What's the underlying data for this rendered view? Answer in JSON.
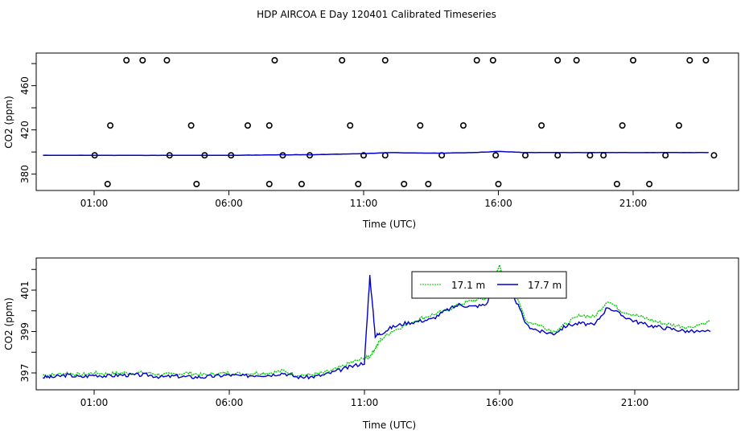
{
  "title": "HDP AIRCOA E  Day 120401  Calibrated Timeseries",
  "colors": {
    "green": "#00cc00",
    "blue": "#0000cc",
    "black": "#000000"
  },
  "chart_data": [
    {
      "type": "scatter",
      "xlabel": "Time (UTC)",
      "ylabel": "CO2 (ppm)",
      "xlim": [
        0,
        24.3
      ],
      "ylim": [
        364,
        486
      ],
      "x_ticks": [
        1,
        6,
        11,
        16,
        21
      ],
      "x_tick_labels": [
        "01:00",
        "06:00",
        "11:00",
        "16:00",
        "21:00"
      ],
      "y_ticks": [
        380,
        420,
        460
      ],
      "y_tick_labels": [
        "380",
        "420",
        "460"
      ],
      "grid": false,
      "reference_points": {
        "x": [
          1.02,
          3.8,
          5.1,
          6.08,
          8.0,
          9.0,
          11.0,
          11.8,
          13.9,
          15.9,
          17.0,
          18.2,
          19.4,
          19.9,
          22.2,
          24.0,
          1.6,
          4.6,
          6.7,
          7.5,
          10.5,
          13.1,
          14.7,
          17.6,
          20.6,
          22.7,
          1.5,
          4.8,
          7.5,
          8.7,
          10.8,
          12.5,
          13.4,
          16.0,
          20.4,
          21.6,
          2.2,
          7.7,
          10.2,
          15.8,
          18.9,
          21.0,
          23.1,
          2.8,
          3.7,
          11.8,
          15.2,
          18.2,
          23.7
        ],
        "y": [
          397,
          397,
          397,
          397,
          397,
          397,
          397,
          397,
          397,
          397,
          397,
          397,
          397,
          397,
          397,
          397,
          424,
          424,
          424,
          424,
          424,
          424,
          424,
          424,
          424,
          424,
          371,
          371,
          371,
          371,
          371,
          371,
          371,
          371,
          371,
          371,
          483,
          483,
          483,
          483,
          483,
          483,
          483,
          483,
          483,
          483,
          483,
          483,
          483
        ]
      },
      "series": [
        {
          "x": [
            -1,
            0,
            1,
            2,
            3,
            4,
            5,
            6,
            7,
            8,
            9,
            10,
            11,
            12,
            13,
            14,
            15,
            16,
            17,
            18,
            19,
            20,
            21,
            22,
            23,
            23.8
          ],
          "y": [
            397,
            397,
            397,
            397,
            397,
            397,
            397,
            397,
            397.2,
            397.5,
            397.5,
            398,
            398.5,
            399.5,
            399,
            399,
            399.5,
            400.5,
            399.5,
            399.5,
            399.5,
            399.5,
            399.5,
            399.5,
            399.5,
            399.5
          ]
        }
      ]
    },
    {
      "type": "line",
      "xlabel": "Time (UTC)",
      "ylabel": "CO2 (ppm)",
      "xlim": [
        -0.2,
        23.8
      ],
      "ylim": [
        396.3,
        402.7
      ],
      "x_ticks": [
        1,
        6,
        11,
        16,
        21
      ],
      "x_tick_labels": [
        "01:00",
        "06:00",
        "11:00",
        "16:00",
        "21:00"
      ],
      "y_ticks": [
        397,
        399,
        401
      ],
      "y_tick_labels": [
        "397",
        "399",
        "401"
      ],
      "grid": false,
      "legend": "top-center",
      "series": [
        {
          "name": "17.1 m",
          "x": [
            -1,
            -0.5,
            0,
            0.5,
            1,
            1.5,
            2,
            2.5,
            3,
            3.5,
            4,
            4.5,
            5,
            5.5,
            6,
            6.5,
            7,
            7.5,
            8,
            8.5,
            9,
            9.5,
            10,
            10.5,
            11,
            11.2,
            11.4,
            11.6,
            12,
            12.5,
            13,
            13.5,
            14,
            14.5,
            15,
            15.5,
            16,
            16.2,
            16.5,
            17,
            17.5,
            18,
            18.5,
            19,
            19.5,
            20,
            20.5,
            21,
            21.5,
            22,
            22.5,
            23,
            23.8
          ],
          "y": [
            396.9,
            396.9,
            397,
            396.9,
            397,
            396.95,
            397,
            397,
            397,
            396.9,
            396.95,
            397,
            396.9,
            396.95,
            397,
            396.95,
            397,
            397,
            397.1,
            396.9,
            396.9,
            397,
            397.2,
            397.5,
            397.7,
            397.8,
            398.2,
            398.6,
            399,
            399.3,
            399.6,
            399.8,
            400,
            400.3,
            400.5,
            400.6,
            402.2,
            401.5,
            401,
            399.5,
            399.3,
            399,
            399.4,
            399.8,
            399.7,
            400.5,
            400,
            399.8,
            399.6,
            399.4,
            399.3,
            399.2,
            399.5
          ]
        },
        {
          "name": "17.7 m",
          "x": [
            -1,
            -0.5,
            0,
            0.5,
            1,
            1.5,
            2,
            2.5,
            3,
            3.5,
            4,
            4.5,
            5,
            5.5,
            6,
            6.5,
            7,
            7.5,
            8,
            8.5,
            9,
            9.5,
            10,
            10.5,
            11,
            11.2,
            11.4,
            11.6,
            12,
            12.5,
            13,
            13.5,
            14,
            14.5,
            15,
            15.5,
            16,
            16.2,
            16.5,
            17,
            17.5,
            18,
            18.5,
            19,
            19.5,
            20,
            20.5,
            21,
            21.5,
            22,
            22.5,
            23,
            23.8
          ],
          "y": [
            396.8,
            396.8,
            396.9,
            396.8,
            396.9,
            396.85,
            396.9,
            396.9,
            396.9,
            396.8,
            396.85,
            396.8,
            396.8,
            396.85,
            396.9,
            396.85,
            396.9,
            396.9,
            397,
            396.8,
            396.8,
            396.9,
            397.1,
            397.3,
            397.5,
            401.7,
            398.8,
            398.9,
            399.2,
            399.4,
            399.5,
            399.6,
            400,
            400.3,
            400.2,
            400.3,
            401.8,
            401.2,
            400.8,
            399.3,
            399,
            398.9,
            399.3,
            399.4,
            399.3,
            400.2,
            399.8,
            399.5,
            399.3,
            399.2,
            399.1,
            399,
            399
          ]
        }
      ]
    }
  ]
}
